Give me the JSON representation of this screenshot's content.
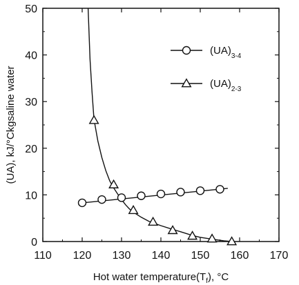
{
  "chart_data": {
    "type": "line",
    "title": "",
    "xlabel": "Hot water temperature(T",
    "xlabel_subscript": "f",
    "xlabel_unit": "), °C",
    "ylabel": "(UA), kJ/°Ckgsaline water",
    "xlim": [
      110,
      170
    ],
    "ylim": [
      0,
      50
    ],
    "x_ticks": [
      110,
      120,
      130,
      140,
      150,
      160,
      170
    ],
    "x_tick_labels": [
      "110",
      "120",
      "130",
      "140",
      "150",
      "160",
      "170"
    ],
    "y_ticks": [
      0,
      10,
      20,
      30,
      40,
      50
    ],
    "y_tick_labels": [
      "0",
      "10",
      "20",
      "30",
      "40",
      "50"
    ],
    "grid": false,
    "legend_position": "top-right",
    "series": [
      {
        "name": "(UA)",
        "subscript": "3-4",
        "marker": "circle",
        "color": "#111111",
        "line_x": [
          119,
          157
        ],
        "line_y": [
          8.2,
          11.4
        ],
        "points": [
          {
            "x": 120,
            "y": 8.3
          },
          {
            "x": 125,
            "y": 9.0
          },
          {
            "x": 130,
            "y": 9.4
          },
          {
            "x": 135,
            "y": 9.8
          },
          {
            "x": 140,
            "y": 10.2
          },
          {
            "x": 145,
            "y": 10.6
          },
          {
            "x": 150,
            "y": 10.9
          },
          {
            "x": 155,
            "y": 11.2
          }
        ]
      },
      {
        "name": "(UA)",
        "subscript": "2-3",
        "marker": "triangle",
        "color": "#111111",
        "curve": [
          [
            121.5,
            50
          ],
          [
            122,
            39
          ],
          [
            122.5,
            32
          ],
          [
            123,
            26.2
          ],
          [
            124,
            21.5
          ],
          [
            125,
            18.0
          ],
          [
            126,
            15.2
          ],
          [
            127,
            13.0
          ],
          [
            128,
            11.5
          ],
          [
            129,
            10.2
          ],
          [
            130,
            9.0
          ],
          [
            131,
            7.9
          ],
          [
            132,
            7.0
          ],
          [
            133,
            6.3
          ],
          [
            135,
            5.2
          ],
          [
            137,
            4.3
          ],
          [
            140,
            3.4
          ],
          [
            143,
            2.6
          ],
          [
            145,
            2.1
          ],
          [
            148,
            1.3
          ],
          [
            150,
            0.9
          ],
          [
            153,
            0.5
          ],
          [
            156,
            0.15
          ],
          [
            158,
            0
          ]
        ],
        "points": [
          {
            "x": 123,
            "y": 26.0
          },
          {
            "x": 128,
            "y": 12.2
          },
          {
            "x": 133,
            "y": 6.7
          },
          {
            "x": 138,
            "y": 4.2
          },
          {
            "x": 143,
            "y": 2.4
          },
          {
            "x": 148,
            "y": 1.2
          },
          {
            "x": 153,
            "y": 0.6
          },
          {
            "x": 158,
            "y": 0
          }
        ]
      }
    ]
  }
}
